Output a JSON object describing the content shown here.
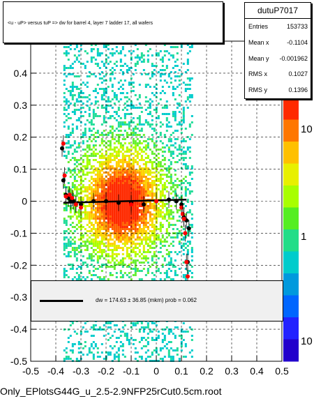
{
  "chart_data": {
    "type": "scatter",
    "title": "<u - uP>       versus  tuP =>  dw for barrel 4, layer 7 ladder 17, all wafers",
    "xlabel": "",
    "ylabel": "",
    "xlim": [
      -0.5,
      0.5
    ],
    "ylim": [
      -0.5,
      0.5
    ],
    "x_ticks": [
      "-0.5",
      "-0.4",
      "-0.3",
      "-0.2",
      "-0.1",
      "0",
      "0.1",
      "0.2",
      "0.3",
      "0.4",
      "0.5"
    ],
    "y_ticks": [
      "-0.5",
      "-0.4",
      "-0.3",
      "-0.2",
      "-0.1",
      "0",
      "0.1",
      "0.2",
      "0.3",
      "0.4"
    ],
    "color_scale": {
      "labels": [
        "10",
        "1",
        "10"
      ],
      "type": "log"
    },
    "grid": true,
    "series": [
      {
        "marker": "black",
        "x": [
          -0.375,
          -0.37,
          -0.36,
          -0.35,
          -0.34,
          -0.33,
          -0.32,
          -0.3,
          -0.25,
          -0.2,
          -0.15,
          -0.1,
          -0.05,
          0.0,
          0.05,
          0.08,
          0.1,
          0.11,
          0.12,
          0.125,
          0.13
        ],
        "y": [
          0.165,
          0.065,
          0.02,
          0.01,
          0.0,
          0.0,
          -0.01,
          -0.01,
          0.0,
          0.0,
          -0.005,
          -0.005,
          -0.01,
          0.0,
          0.005,
          0.0,
          -0.01,
          -0.05,
          -0.06,
          -0.19,
          -0.085
        ]
      },
      {
        "marker": "red",
        "x": [
          -0.37,
          -0.365,
          -0.36,
          -0.345,
          -0.335,
          -0.32,
          -0.3,
          -0.1,
          0.0,
          0.1,
          0.105,
          0.11,
          0.115,
          0.12,
          0.125
        ],
        "y": [
          0.18,
          0.08,
          0.015,
          0.02,
          0.01,
          -0.01,
          -0.02,
          -0.01,
          0.0,
          -0.02,
          -0.04,
          -0.055,
          -0.1,
          -0.19,
          -0.235
        ]
      }
    ],
    "fit": {
      "x": [
        -0.37,
        0.12
      ],
      "y": [
        -0.005,
        0.005
      ]
    },
    "density": {
      "x_min": -0.37,
      "x_max": 0.14,
      "peak_x": -0.14,
      "peak_y": 0.0
    }
  },
  "stats": {
    "name": "dutuP7017",
    "rows": [
      {
        "label": "Entries",
        "value": "153733"
      },
      {
        "label": "Mean x",
        "value": "-0.1104"
      },
      {
        "label": "Mean y",
        "value": "-0.001962"
      },
      {
        "label": "RMS x",
        "value": "0.1027"
      },
      {
        "label": "RMS y",
        "value": "0.1396"
      }
    ]
  },
  "legend": {
    "text": "dw =  174.63 ± 36.85 (mkm) prob = 0.062"
  },
  "footer": "Only_EPlotsG44G_u_2.5-2.9NFP25rCut0.5cm.root"
}
